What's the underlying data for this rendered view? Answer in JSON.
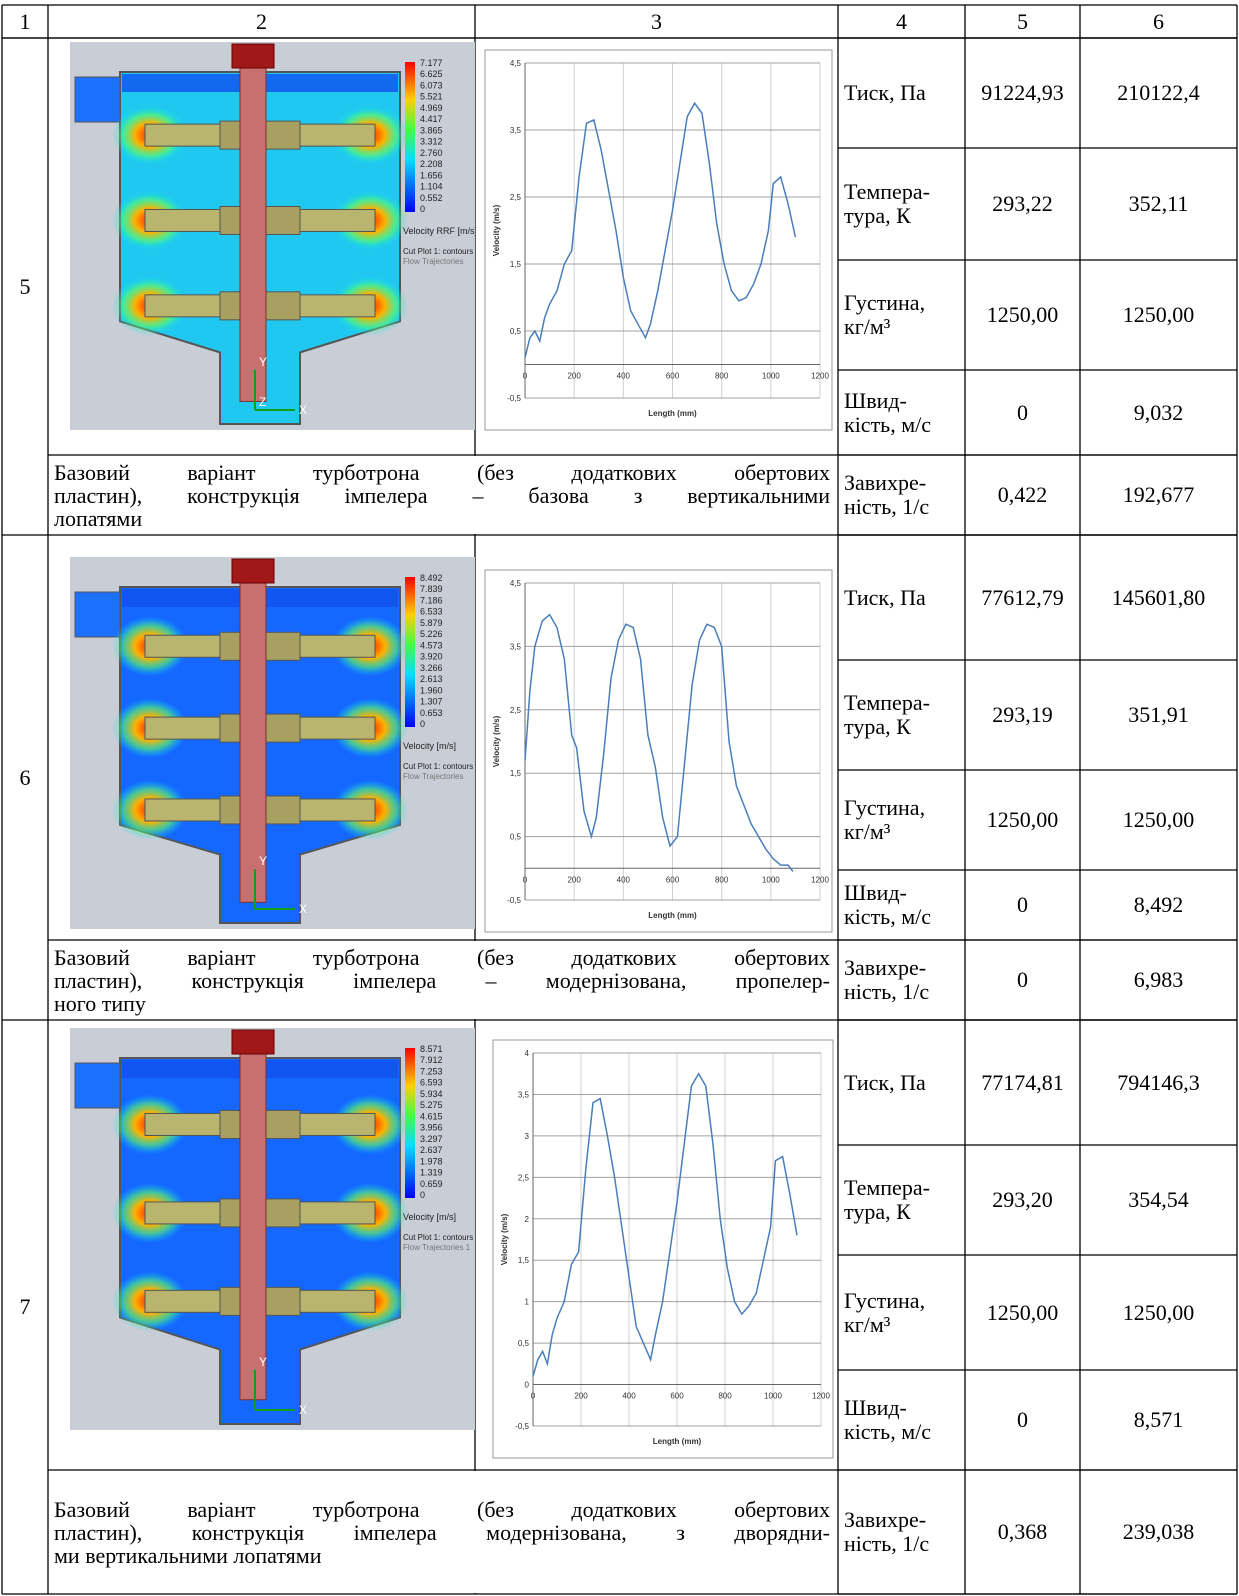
{
  "header": [
    "1",
    "2",
    "3",
    "4",
    "5",
    "6"
  ],
  "rows": [
    {
      "number": "5",
      "simulation": {
        "legend_values": [
          "7.177",
          "6.625",
          "6.073",
          "5.521",
          "4.969",
          "4.417",
          "3.865",
          "3.312",
          "2.760",
          "2.208",
          "1.656",
          "1.104",
          "0.552",
          "0"
        ],
        "legend_title": "Velocity RRF [m/s]",
        "notes": [
          "Cut Plot 1: contours",
          "Flow Trajectories"
        ],
        "axes": [
          "Y",
          "Z",
          "X"
        ]
      },
      "plot": {
        "y_label": "Velocity (m/s)",
        "x_label": "Length (mm)",
        "ylim": [
          -0.5,
          4.5
        ],
        "yticks": [
          {
            "value": 4.5,
            "label": "4,5"
          },
          {
            "value": 3.5,
            "label": "3,5"
          },
          {
            "value": 2.5,
            "label": "2,5"
          },
          {
            "value": 1.5,
            "label": "1,5"
          },
          {
            "value": 0.5,
            "label": "0,5"
          },
          {
            "value": -0.5,
            "label": "-0,5"
          }
        ],
        "xlim": [
          0,
          1200
        ],
        "xticks": [
          0,
          200,
          400,
          600,
          800,
          1000,
          1200
        ],
        "x": [
          0,
          20,
          40,
          60,
          80,
          100,
          130,
          160,
          190,
          220,
          250,
          280,
          310,
          340,
          370,
          400,
          430,
          460,
          490,
          510,
          540,
          570,
          600,
          630,
          660,
          690,
          720,
          750,
          780,
          810,
          840,
          870,
          900,
          930,
          960,
          990,
          1010,
          1040,
          1070,
          1100
        ],
        "values": [
          0.1,
          0.4,
          0.5,
          0.35,
          0.7,
          0.9,
          1.1,
          1.5,
          1.7,
          2.8,
          3.6,
          3.65,
          3.2,
          2.6,
          2.0,
          1.3,
          0.8,
          0.6,
          0.4,
          0.6,
          1.1,
          1.7,
          2.3,
          3.0,
          3.7,
          3.9,
          3.75,
          3.0,
          2.1,
          1.5,
          1.1,
          0.95,
          1.0,
          1.2,
          1.5,
          2.0,
          2.7,
          2.8,
          2.4,
          1.9
        ]
      },
      "params": [
        {
          "name": "Тиск, Па",
          "values": [
            "91224,93",
            "210122,4"
          ]
        },
        {
          "name": "Темпера-\nтура, К",
          "values": [
            "293,22",
            "352,11"
          ]
        },
        {
          "name": "Густина,\nкг/м³",
          "values": [
            "1250,00",
            "1250,00"
          ]
        },
        {
          "name": "Швид-\nкість, м/с",
          "values": [
            "0",
            "9,032"
          ]
        },
        {
          "name": "Завихре-\nність, 1/с",
          "values": [
            "0,422",
            "192,677"
          ]
        }
      ],
      "description": [
        "Базовий варіант турботрона (без додаткових обертових",
        "пластин), конструкція імпелера – базова з вертикальними",
        "лопатями"
      ]
    },
    {
      "number": "6",
      "simulation": {
        "legend_values": [
          "8.492",
          "7.839",
          "7.186",
          "6.533",
          "5.879",
          "5.226",
          "4.573",
          "3.920",
          "3.266",
          "2.613",
          "1.960",
          "1.307",
          "0.653",
          "0"
        ],
        "legend_title": "Velocity [m/s]",
        "notes": [
          "Cut Plot 1: contours",
          "Flow Trajectories"
        ],
        "axes": [
          "Y",
          "X"
        ]
      },
      "plot": {
        "y_label": "Velocity (m/s)",
        "x_label": "Length (mm)",
        "ylim": [
          -0.5,
          4.5
        ],
        "yticks": [
          {
            "value": 4.5,
            "label": "4,5"
          },
          {
            "value": 3.5,
            "label": "3,5"
          },
          {
            "value": 2.5,
            "label": "2,5"
          },
          {
            "value": 1.5,
            "label": "1,5"
          },
          {
            "value": 0.5,
            "label": "0,5"
          },
          {
            "value": -0.5,
            "label": "-0,5"
          }
        ],
        "xlim": [
          0,
          1200
        ],
        "xticks": [
          0,
          200,
          400,
          600,
          800,
          1000,
          1200
        ],
        "x": [
          0,
          20,
          40,
          70,
          100,
          130,
          160,
          190,
          210,
          240,
          270,
          290,
          320,
          350,
          380,
          410,
          440,
          470,
          500,
          530,
          560,
          590,
          620,
          650,
          680,
          710,
          740,
          770,
          800,
          830,
          860,
          890,
          920,
          950,
          980,
          1010,
          1040,
          1070,
          1090
        ],
        "values": [
          1.7,
          2.8,
          3.5,
          3.9,
          4.0,
          3.8,
          3.3,
          2.1,
          1.9,
          0.9,
          0.5,
          0.8,
          1.8,
          3.0,
          3.6,
          3.85,
          3.8,
          3.3,
          2.1,
          1.6,
          0.8,
          0.35,
          0.5,
          1.7,
          2.9,
          3.6,
          3.85,
          3.8,
          3.5,
          2.0,
          1.3,
          1.0,
          0.7,
          0.5,
          0.3,
          0.15,
          0.05,
          0.05,
          -0.05
        ]
      },
      "params": [
        {
          "name": "Тиск, Па",
          "values": [
            "77612,79",
            "145601,80"
          ]
        },
        {
          "name": "Темпера-\nтура, К",
          "values": [
            "293,19",
            "351,91"
          ]
        },
        {
          "name": "Густина,\nкг/м³",
          "values": [
            "1250,00",
            "1250,00"
          ]
        },
        {
          "name": "Швид-\nкість, м/с",
          "values": [
            "0",
            "8,492"
          ]
        },
        {
          "name": "Завихре-\nність, 1/с",
          "values": [
            "0",
            "6,983"
          ]
        }
      ],
      "description": [
        "Базовий варіант турботрона (без додаткових обертових",
        "пластин), конструкція імпелера – модернізована, пропелер-",
        "ного типу"
      ]
    },
    {
      "number": "7",
      "simulation": {
        "legend_values": [
          "8.571",
          "7.912",
          "7.253",
          "6.593",
          "5.934",
          "5.275",
          "4.615",
          "3.956",
          "3.297",
          "2.637",
          "1.978",
          "1.319",
          "0.659",
          "0"
        ],
        "legend_title": "Velocity [m/s]",
        "notes": [
          "Cut Plot 1: contours",
          "Flow Trajectories 1"
        ],
        "axes": [
          "Y",
          "X"
        ]
      },
      "plot": {
        "y_label": "Velocity (m/s)",
        "x_label": "Length (mm)",
        "ylim": [
          -0.5,
          4
        ],
        "yticks": [
          4,
          {
            "value": 3.5,
            "label": "3,5"
          },
          3,
          {
            "value": 2.5,
            "label": "2,5"
          },
          2,
          {
            "value": 1.5,
            "label": "1,5"
          },
          1,
          {
            "value": 0.5,
            "label": "0,5"
          },
          0,
          {
            "value": -0.5,
            "label": "-0,5"
          }
        ],
        "xlim": [
          0,
          1200
        ],
        "xticks": [
          0,
          200,
          400,
          600,
          800,
          1000,
          1200
        ],
        "x": [
          0,
          20,
          40,
          60,
          80,
          100,
          130,
          160,
          190,
          220,
          250,
          280,
          310,
          340,
          370,
          400,
          430,
          460,
          490,
          510,
          540,
          570,
          600,
          630,
          660,
          690,
          720,
          750,
          780,
          810,
          840,
          870,
          900,
          930,
          960,
          990,
          1010,
          1040,
          1070,
          1100
        ],
        "values": [
          0.1,
          0.3,
          0.4,
          0.25,
          0.6,
          0.8,
          1.0,
          1.45,
          1.6,
          2.6,
          3.4,
          3.45,
          3.0,
          2.5,
          1.9,
          1.3,
          0.7,
          0.5,
          0.3,
          0.6,
          1.0,
          1.6,
          2.2,
          2.9,
          3.6,
          3.75,
          3.6,
          2.9,
          2.0,
          1.4,
          1.0,
          0.85,
          0.95,
          1.1,
          1.5,
          1.9,
          2.7,
          2.75,
          2.3,
          1.8
        ]
      },
      "params": [
        {
          "name": "Тиск, Па",
          "values": [
            "77174,81",
            "794146,3"
          ]
        },
        {
          "name": "Темпера-\nтура, К",
          "values": [
            "293,20",
            "354,54"
          ]
        },
        {
          "name": "Густина,\nкг/м³",
          "values": [
            "1250,00",
            "1250,00"
          ]
        },
        {
          "name": "Швид-\nкість, м/с",
          "values": [
            "0",
            "8,571"
          ]
        },
        {
          "name": "Завихре-\nність, 1/с",
          "values": [
            "0,368",
            "239,038"
          ]
        }
      ],
      "description": [
        "Базовий варіант турботрона (без додаткових обертових",
        "пластин), конструкція імпелера модернізована, з дворядни-",
        "ми вертикальними лопатями"
      ]
    }
  ]
}
